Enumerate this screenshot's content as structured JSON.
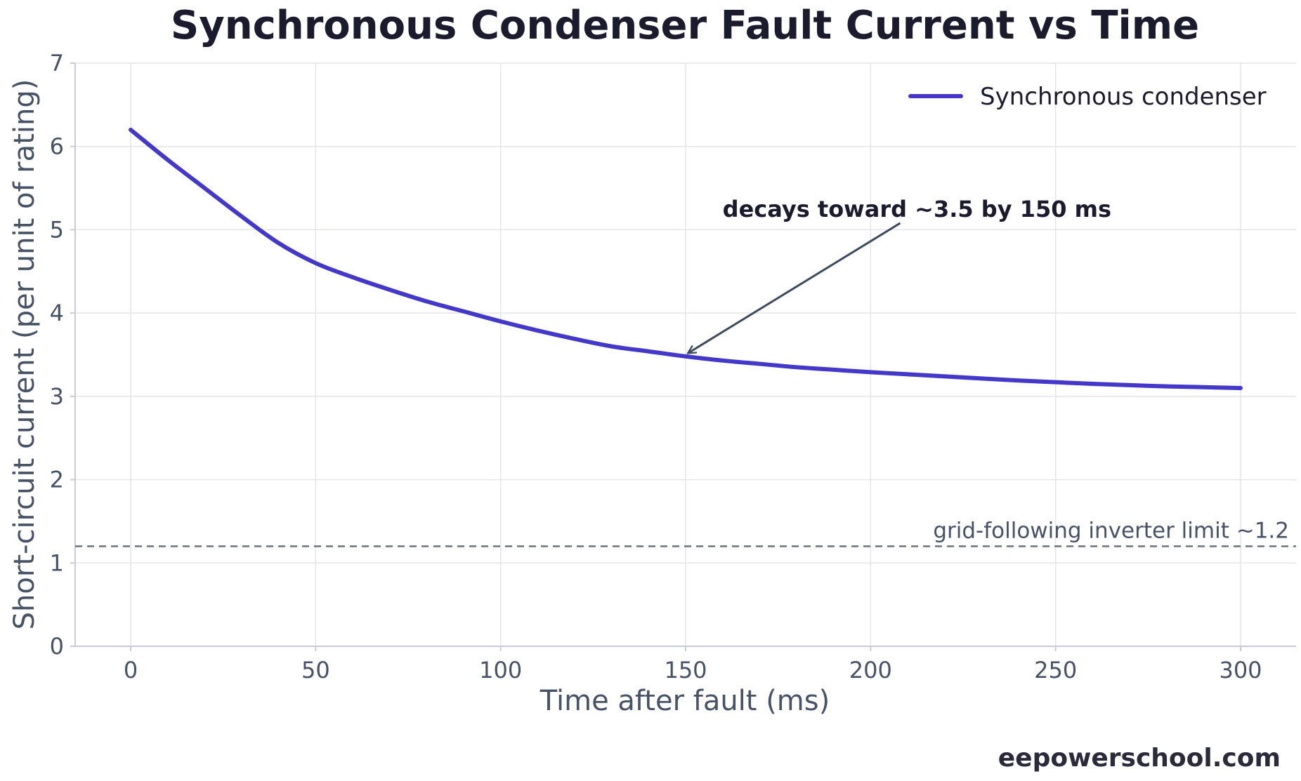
{
  "colors": {
    "series": "#4338ca",
    "grid": "#e4e4ea",
    "axis": "#c9c9d8",
    "reference_line": "#6b7280",
    "arrow": "#3d4a5c"
  },
  "chart_data": {
    "type": "line",
    "title": "Synchronous Condenser Fault Current vs Time",
    "xlabel": "Time after fault (ms)",
    "ylabel": "Short-circuit current (per unit of rating)",
    "xlim": [
      -15,
      315
    ],
    "ylim": [
      0,
      7
    ],
    "xticks": [
      0,
      50,
      100,
      150,
      200,
      250,
      300
    ],
    "yticks": [
      0,
      1,
      2,
      3,
      4,
      5,
      6,
      7
    ],
    "grid": true,
    "legend_position": "top-right",
    "series": [
      {
        "name": "Synchronous condenser",
        "x": [
          0,
          10,
          20,
          30,
          40,
          50,
          60,
          70,
          80,
          90,
          100,
          110,
          120,
          130,
          140,
          150,
          160,
          170,
          180,
          190,
          200,
          210,
          220,
          230,
          240,
          250,
          260,
          270,
          280,
          290,
          300
        ],
        "y": [
          6.2,
          5.84,
          5.5,
          5.16,
          4.84,
          4.6,
          4.43,
          4.28,
          4.14,
          4.02,
          3.9,
          3.79,
          3.69,
          3.6,
          3.54,
          3.48,
          3.43,
          3.39,
          3.35,
          3.32,
          3.29,
          3.265,
          3.24,
          3.215,
          3.19,
          3.17,
          3.15,
          3.135,
          3.12,
          3.11,
          3.1
        ]
      }
    ],
    "reference_lines": [
      {
        "y": 1.2,
        "label": "grid-following inverter limit ~1.2",
        "style": "dashed"
      }
    ],
    "annotations": [
      {
        "text": "decays toward ~3.5 by 150 ms",
        "text_x": 160,
        "text_y": 5.25,
        "arrow_from_x": 208,
        "arrow_from_y": 5.08,
        "arrow_to_x": 150,
        "arrow_to_y": 3.5
      }
    ]
  },
  "watermark": "eepowerschool.com"
}
